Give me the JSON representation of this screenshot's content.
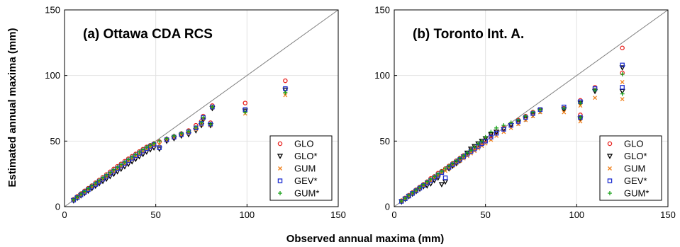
{
  "figure": {
    "xlabel": "Observed annual maxima (mm)",
    "ylabel": "Estimated annual maxima (mm)"
  },
  "colors": {
    "GLO": "#e8201d",
    "GLO*": "#000000",
    "GUM": "#f07f1a",
    "GEV*": "#1f2fd0",
    "GUM*": "#18a018",
    "reference_line": "#808080",
    "grid": "#e2e2e2"
  },
  "chart_data": [
    {
      "type": "scatter",
      "title": "(a) Ottawa CDA RCS",
      "xlim": [
        0,
        150
      ],
      "ylim": [
        0,
        150
      ],
      "xticks": [
        0,
        50,
        100,
        150
      ],
      "yticks": [
        0,
        50,
        100,
        150
      ],
      "grid": true,
      "reference_line": "1:1",
      "legend_position": "bottom-right",
      "legend": [
        "GLO",
        "GLO*",
        "GUM",
        "GEV*",
        "GUM*"
      ],
      "series": [
        {
          "name": "GLO",
          "marker": "circle",
          "x": [
            5,
            7,
            9,
            11,
            13,
            15,
            17,
            19,
            21,
            23,
            25,
            27,
            29,
            31,
            33,
            35,
            37,
            39,
            41,
            43,
            45,
            47,
            49,
            52,
            56,
            60,
            64,
            68,
            72,
            75,
            76,
            80,
            81,
            99,
            121
          ],
          "y": [
            5.6,
            7.8,
            9.9,
            12,
            14,
            16,
            18.2,
            20.3,
            22.4,
            24.5,
            26.6,
            28.7,
            30.7,
            32.6,
            34.6,
            36.5,
            38.4,
            40.2,
            42,
            43.8,
            45.5,
            46.8,
            48,
            49.5,
            51.5,
            53.5,
            55.7,
            58,
            62,
            65,
            69,
            64,
            77,
            79,
            96
          ]
        },
        {
          "name": "GLO*",
          "marker": "triangle-down",
          "x": [
            5,
            7,
            9,
            11,
            13,
            15,
            17,
            19,
            21,
            23,
            25,
            27,
            29,
            31,
            33,
            35,
            37,
            39,
            41,
            43,
            45,
            47,
            49,
            52,
            56,
            60,
            64,
            68,
            72,
            75,
            76,
            80,
            81,
            99,
            121
          ],
          "y": [
            4.6,
            6.5,
            8.4,
            10.2,
            12,
            13.9,
            15.8,
            17.6,
            19.4,
            21.2,
            23.1,
            24.9,
            26.8,
            28.7,
            30.6,
            32.5,
            34.4,
            36.3,
            38.2,
            40,
            41.8,
            43.5,
            45,
            44,
            50,
            52,
            54,
            55,
            58,
            62,
            66,
            62,
            75,
            73,
            89
          ]
        },
        {
          "name": "GUM",
          "marker": "x",
          "x": [
            5,
            7,
            9,
            11,
            13,
            15,
            17,
            19,
            21,
            23,
            25,
            27,
            29,
            31,
            33,
            35,
            37,
            39,
            41,
            43,
            45,
            47,
            49,
            52,
            56,
            60,
            64,
            68,
            72,
            75,
            76,
            80,
            81,
            99,
            121
          ],
          "y": [
            4.9,
            6.9,
            8.9,
            10.9,
            12.9,
            14.8,
            16.8,
            18.8,
            20.8,
            22.7,
            24.7,
            26.7,
            28.6,
            30.5,
            32.4,
            34.3,
            36.2,
            38.1,
            40,
            41.8,
            43.6,
            45.2,
            46.8,
            47.5,
            50.5,
            52.5,
            54.5,
            56,
            59,
            62.5,
            67,
            62,
            75.5,
            71,
            85
          ]
        },
        {
          "name": "GEV*",
          "marker": "square",
          "x": [
            5,
            7,
            9,
            11,
            13,
            15,
            17,
            19,
            21,
            23,
            25,
            27,
            29,
            31,
            33,
            35,
            37,
            39,
            41,
            43,
            45,
            47,
            49,
            52,
            56,
            60,
            64,
            68,
            72,
            75,
            76,
            80,
            81,
            99,
            121
          ],
          "y": [
            5,
            7,
            9,
            11,
            13,
            15,
            17,
            19,
            21,
            23,
            25,
            27,
            29,
            31,
            33,
            35,
            36.9,
            38.8,
            40.6,
            42.4,
            44.2,
            45.8,
            47.3,
            45,
            51,
            53,
            55,
            57,
            60,
            63.5,
            68,
            63,
            76,
            74,
            90
          ]
        },
        {
          "name": "GUM*",
          "marker": "plus",
          "x": [
            5,
            7,
            9,
            11,
            13,
            15,
            17,
            19,
            21,
            23,
            25,
            27,
            29,
            31,
            33,
            35,
            37,
            39,
            41,
            43,
            45,
            47,
            49,
            52,
            56,
            60,
            64,
            68,
            72,
            75,
            76,
            80,
            81,
            99,
            121
          ],
          "y": [
            5.4,
            7.5,
            9.6,
            11.7,
            13.8,
            15.9,
            18,
            20,
            22.1,
            24.1,
            26.1,
            28.1,
            30.1,
            32.1,
            34,
            36,
            37.9,
            39.8,
            41.7,
            43.5,
            45.3,
            46.8,
            48.3,
            50,
            52,
            54,
            56,
            57.5,
            60.5,
            64,
            68,
            63,
            76,
            72,
            87
          ]
        }
      ]
    },
    {
      "type": "scatter",
      "title": "(b) Toronto Int. A.",
      "xlim": [
        0,
        150
      ],
      "ylim": [
        0,
        150
      ],
      "xticks": [
        0,
        50,
        100,
        150
      ],
      "yticks": [
        0,
        50,
        100,
        150
      ],
      "grid": true,
      "reference_line": "1:1",
      "legend_position": "bottom-right",
      "legend": [
        "GLO",
        "GLO*",
        "GUM",
        "GEV*",
        "GUM*"
      ],
      "series": [
        {
          "name": "GLO",
          "marker": "circle",
          "x": [
            4,
            6,
            8,
            10,
            12,
            14,
            16,
            18,
            20,
            22,
            24,
            26,
            28,
            30,
            32,
            34,
            36,
            38,
            40,
            42,
            44,
            46,
            48,
            50,
            53,
            56,
            60,
            64,
            68,
            72,
            76,
            80,
            93,
            102,
            102,
            110,
            125,
            125
          ],
          "y": [
            4.5,
            6.6,
            8.7,
            10.8,
            12.9,
            15,
            17,
            19,
            21.5,
            23,
            25.5,
            27,
            29,
            31,
            33,
            35,
            37,
            39,
            41,
            43,
            45,
            47,
            49,
            51,
            54,
            57,
            60,
            63,
            66,
            69,
            72,
            74,
            75,
            81,
            70,
            91,
            121,
            102
          ]
        },
        {
          "name": "GLO*",
          "marker": "triangle-down",
          "x": [
            4,
            6,
            8,
            10,
            12,
            14,
            16,
            18,
            20,
            22,
            24,
            26,
            28,
            30,
            32,
            34,
            36,
            38,
            40,
            42,
            44,
            46,
            48,
            50,
            53,
            56,
            60,
            64,
            68,
            72,
            76,
            80,
            93,
            102,
            102,
            110,
            125,
            125
          ],
          "y": [
            3.8,
            5.8,
            7.8,
            9.7,
            11.6,
            13.5,
            15.4,
            16,
            17.5,
            20,
            22,
            17,
            19,
            29,
            31,
            33,
            35,
            38,
            41,
            44,
            46,
            48,
            50,
            52,
            55,
            57,
            59,
            62,
            64,
            67,
            70,
            73,
            74,
            79,
            67,
            88,
            106,
            88
          ]
        },
        {
          "name": "GUM",
          "marker": "x",
          "x": [
            4,
            6,
            8,
            10,
            12,
            14,
            16,
            18,
            20,
            22,
            24,
            26,
            28,
            30,
            32,
            34,
            36,
            38,
            40,
            42,
            44,
            46,
            48,
            50,
            53,
            56,
            60,
            64,
            68,
            72,
            76,
            80,
            93,
            102,
            102,
            110,
            125,
            125
          ],
          "y": [
            4.2,
            6.2,
            8.2,
            10.2,
            12.1,
            14,
            15.9,
            17.8,
            19.7,
            21.6,
            23.5,
            25.4,
            27.3,
            29.2,
            31.1,
            33,
            34.9,
            36.8,
            38.7,
            40.6,
            42.5,
            44.4,
            46.3,
            48.2,
            51,
            54,
            57,
            60,
            63,
            66,
            69,
            72,
            72,
            77,
            65,
            83,
            95,
            82
          ]
        },
        {
          "name": "GEV*",
          "marker": "square",
          "x": [
            4,
            6,
            8,
            10,
            12,
            14,
            16,
            18,
            20,
            22,
            24,
            26,
            28,
            30,
            32,
            34,
            36,
            38,
            40,
            42,
            44,
            46,
            48,
            50,
            53,
            56,
            60,
            64,
            68,
            72,
            76,
            80,
            93,
            102,
            102,
            110,
            125,
            125
          ],
          "y": [
            4.1,
            6.1,
            8.1,
            10.1,
            12.1,
            14.1,
            16.1,
            18.1,
            20,
            22,
            24,
            26,
            22,
            30,
            32,
            34,
            36,
            38,
            40,
            42,
            44,
            46,
            48,
            50,
            53,
            56,
            59,
            62,
            65,
            68,
            71,
            74,
            76,
            80,
            68,
            90,
            108,
            91
          ]
        },
        {
          "name": "GUM*",
          "marker": "plus",
          "x": [
            4,
            6,
            8,
            10,
            12,
            14,
            16,
            18,
            20,
            22,
            24,
            26,
            28,
            30,
            32,
            34,
            36,
            38,
            40,
            42,
            44,
            46,
            48,
            50,
            53,
            56,
            60,
            64,
            68,
            72,
            76,
            80,
            93,
            102,
            102,
            110,
            125,
            125
          ],
          "y": [
            4.3,
            6.4,
            8.5,
            10.6,
            12.7,
            14.8,
            16.9,
            19,
            21,
            23,
            25,
            27,
            29,
            31,
            33,
            35,
            37,
            39,
            41,
            43,
            45.5,
            48,
            50,
            53,
            57,
            60,
            62,
            64,
            66,
            69,
            72,
            74,
            75,
            79,
            68,
            89,
            101,
            86
          ]
        }
      ]
    }
  ]
}
